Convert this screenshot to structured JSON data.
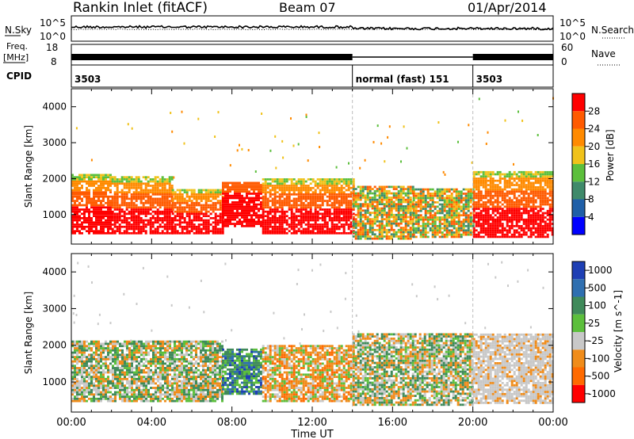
{
  "header": {
    "station": "Rankin Inlet (fitACF)",
    "beam": "Beam 07",
    "date": "01/Apr/2014"
  },
  "top_panels": {
    "nsky": {
      "left_label": "N.Sky",
      "right_label": "N.Search",
      "left_ticks": [
        "10^5",
        "10^0"
      ],
      "right_ticks": [
        "10^5",
        "10^0"
      ]
    },
    "freq": {
      "left_label_1": "Freq.",
      "left_label_2": "[MHz]",
      "right_label": "Nave",
      "left_ticks": [
        "18",
        "8"
      ],
      "right_ticks": [
        "60",
        "0"
      ]
    },
    "cpid": {
      "label": "CPID",
      "segments": [
        {
          "label": "3503",
          "start_hr": 0
        },
        {
          "label": "normal (fast) 151",
          "start_hr": 14.0
        },
        {
          "label": "3503",
          "start_hr": 20.0
        }
      ]
    }
  },
  "chart_data": [
    {
      "type": "heatmap",
      "title": "",
      "xlabel": "Time UT",
      "ylabel": "Slant Range [km]",
      "x_ticks": [
        "00:00",
        "04:00",
        "08:00",
        "12:00",
        "16:00",
        "20:00",
        "00:00"
      ],
      "xlim_hours": [
        0,
        24
      ],
      "y_ticks": [
        1000,
        2000,
        3000,
        4000
      ],
      "ylim": [
        180,
        4500
      ],
      "mode_boundaries_hr": [
        14.0,
        20.0
      ],
      "colorbar": {
        "label": "Power [dB]",
        "ticks": [
          "4",
          "8",
          "12",
          "16",
          "20",
          "24",
          "28"
        ],
        "range": [
          0,
          30
        ],
        "colors": [
          "#0000ff",
          "#1f5fa8",
          "#3f8a6a",
          "#5cbf3c",
          "#f0c21a",
          "#ff8a00",
          "#ff5a00",
          "#ff0000"
        ]
      },
      "bands": [
        {
          "start_hr": 0.0,
          "end_hr": 2.0,
          "range_km": [
            450,
            2100
          ],
          "level": "high"
        },
        {
          "start_hr": 2.0,
          "end_hr": 5.0,
          "range_km": [
            450,
            2050
          ],
          "level": "high"
        },
        {
          "start_hr": 5.0,
          "end_hr": 7.5,
          "range_km": [
            450,
            1700
          ],
          "level": "high"
        },
        {
          "start_hr": 7.5,
          "end_hr": 9.5,
          "range_km": [
            650,
            1900
          ],
          "level": "very-high"
        },
        {
          "start_hr": 9.5,
          "end_hr": 14.0,
          "range_km": [
            450,
            2000
          ],
          "level": "high"
        },
        {
          "start_hr": 14.0,
          "end_hr": 17.0,
          "range_km": [
            300,
            1800
          ],
          "level": "mixed"
        },
        {
          "start_hr": 17.0,
          "end_hr": 20.0,
          "range_km": [
            350,
            1700
          ],
          "level": "mixed"
        },
        {
          "start_hr": 20.0,
          "end_hr": 24.0,
          "range_km": [
            350,
            2200
          ],
          "level": "high"
        }
      ]
    },
    {
      "type": "heatmap",
      "title": "",
      "xlabel": "Time UT",
      "ylabel": "Slant Range [km]",
      "x_ticks": [
        "00:00",
        "04:00",
        "08:00",
        "12:00",
        "16:00",
        "20:00",
        "00:00"
      ],
      "xlim_hours": [
        0,
        24
      ],
      "y_ticks": [
        1000,
        2000,
        3000,
        4000
      ],
      "ylim": [
        180,
        4500
      ],
      "mode_boundaries_hr": [
        14.0,
        20.0
      ],
      "colorbar": {
        "label": "Velocity [m s^-1]",
        "ticks": [
          "1000",
          "500",
          "100",
          "25",
          "-25",
          "-100",
          "-500",
          "-1000"
        ],
        "range": [
          -1000,
          1000
        ],
        "colors": [
          "#1e3fb4",
          "#2f6fb0",
          "#3f8a5a",
          "#5cbf3c",
          "#c8c8c8",
          "#f08c1a",
          "#ff6a00",
          "#ff0000"
        ]
      },
      "bands": [
        {
          "start_hr": 0.0,
          "end_hr": 7.5,
          "range_km": [
            450,
            2100
          ],
          "velocity": "mixed"
        },
        {
          "start_hr": 7.5,
          "end_hr": 9.5,
          "range_km": [
            650,
            1900
          ],
          "velocity": "positive"
        },
        {
          "start_hr": 9.5,
          "end_hr": 14.0,
          "range_km": [
            450,
            2000
          ],
          "velocity": "negative"
        },
        {
          "start_hr": 14.0,
          "end_hr": 20.0,
          "range_km": [
            350,
            2300
          ],
          "velocity": "mixed"
        },
        {
          "start_hr": 20.0,
          "end_hr": 24.0,
          "range_km": [
            400,
            2300
          ],
          "velocity": "near-zero"
        }
      ]
    }
  ],
  "colors": {
    "axis": "#000000",
    "grid": "#bdbdbd",
    "nsearch_dash": "#000000"
  }
}
